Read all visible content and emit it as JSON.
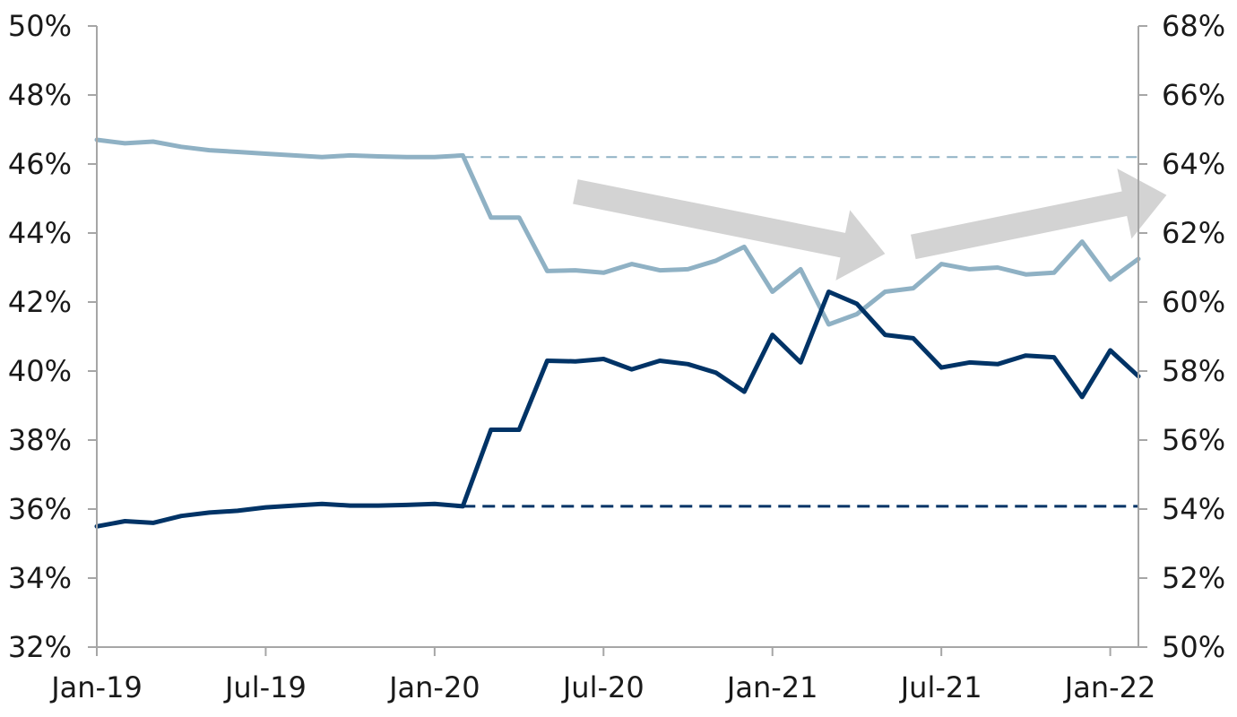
{
  "chart_data": {
    "type": "line",
    "title": "",
    "xlabel": "",
    "ylabel": "",
    "y_left": {
      "range": [
        32,
        50
      ],
      "ticks": [
        32,
        34,
        36,
        38,
        40,
        42,
        44,
        46,
        48,
        50
      ],
      "tick_labels": [
        "32%",
        "34%",
        "36%",
        "38%",
        "40%",
        "42%",
        "44%",
        "46%",
        "48%",
        "50%"
      ]
    },
    "y_right": {
      "range": [
        50,
        68
      ],
      "ticks": [
        50,
        52,
        54,
        56,
        58,
        60,
        62,
        64,
        66,
        68
      ],
      "tick_labels": [
        "50%",
        "52%",
        "54%",
        "56%",
        "58%",
        "60%",
        "62%",
        "64%",
        "66%",
        "68%"
      ]
    },
    "x_axis": {
      "type": "date",
      "range": [
        "2019-01",
        "2022-02"
      ],
      "ticks": [
        "2019-01",
        "2019-07",
        "2020-01",
        "2020-07",
        "2021-01",
        "2021-07",
        "2022-01"
      ],
      "tick_labels": [
        "Jan-19",
        "Jul-19",
        "Jan-20",
        "Jul-20",
        "Jan-21",
        "Jul-21",
        "Jan-22"
      ]
    },
    "grid": false,
    "legend": "none",
    "series": [
      {
        "axis": "left",
        "color": "#8fb1c4",
        "x": [
          "2019-01",
          "2019-02",
          "2019-03",
          "2019-04",
          "2019-05",
          "2019-06",
          "2019-07",
          "2019-08",
          "2019-09",
          "2019-10",
          "2019-11",
          "2019-12",
          "2020-01",
          "2020-02",
          "2020-03",
          "2020-04",
          "2020-05",
          "2020-06",
          "2020-07",
          "2020-08",
          "2020-09",
          "2020-10",
          "2020-11",
          "2020-12",
          "2021-01",
          "2021-02",
          "2021-03",
          "2021-04",
          "2021-05",
          "2021-06",
          "2021-07",
          "2021-08",
          "2021-09",
          "2021-10",
          "2021-11",
          "2021-12",
          "2022-01",
          "2022-02"
        ],
        "values": [
          46.7,
          46.6,
          46.65,
          46.5,
          46.4,
          46.35,
          46.3,
          46.25,
          46.2,
          46.25,
          46.22,
          46.2,
          46.2,
          46.25,
          44.45,
          44.45,
          42.9,
          42.92,
          42.85,
          43.1,
          42.92,
          42.95,
          43.2,
          43.6,
          42.3,
          42.95,
          41.35,
          41.65,
          42.3,
          42.4,
          43.1,
          42.95,
          43.0,
          42.8,
          42.85,
          43.75,
          42.65,
          43.25
        ]
      },
      {
        "axis": "right",
        "color": "#003366",
        "x": [
          "2019-01",
          "2019-02",
          "2019-03",
          "2019-04",
          "2019-05",
          "2019-06",
          "2019-07",
          "2019-08",
          "2019-09",
          "2019-10",
          "2019-11",
          "2019-12",
          "2020-01",
          "2020-02",
          "2020-03",
          "2020-04",
          "2020-05",
          "2020-06",
          "2020-07",
          "2020-08",
          "2020-09",
          "2020-10",
          "2020-11",
          "2020-12",
          "2021-01",
          "2021-02",
          "2021-03",
          "2021-04",
          "2021-05",
          "2021-06",
          "2021-07",
          "2021-08",
          "2021-09",
          "2021-10",
          "2021-11",
          "2021-12",
          "2022-01",
          "2022-02"
        ],
        "values": [
          53.5,
          53.65,
          53.6,
          53.8,
          53.9,
          53.95,
          54.05,
          54.1,
          54.15,
          54.1,
          54.1,
          54.12,
          54.15,
          54.08,
          56.3,
          56.3,
          58.3,
          58.28,
          58.35,
          58.05,
          58.3,
          58.2,
          57.95,
          57.4,
          59.05,
          58.25,
          60.3,
          59.95,
          59.05,
          58.95,
          58.1,
          58.25,
          58.2,
          58.45,
          58.4,
          57.25,
          58.6,
          57.85
        ]
      }
    ],
    "reference_lines": [
      {
        "axis": "left",
        "value": 46.2,
        "from": "2020-02",
        "to": "2022-02",
        "style": "dashed",
        "color": "#8fb1c4"
      },
      {
        "axis": "right",
        "value": 54.08,
        "from": "2020-02",
        "to": "2022-02",
        "style": "dashed",
        "color": "#003366"
      }
    ],
    "annotations": [
      {
        "type": "arrow",
        "direction": "down",
        "from": [
          "2020-06",
          45.2
        ],
        "to": [
          "2021-05",
          43.4
        ],
        "color": "#d3d3d3"
      },
      {
        "type": "arrow",
        "direction": "up",
        "from": [
          "2021-06",
          43.6
        ],
        "to": [
          "2022-03",
          45.1
        ],
        "color": "#d3d3d3"
      }
    ]
  }
}
